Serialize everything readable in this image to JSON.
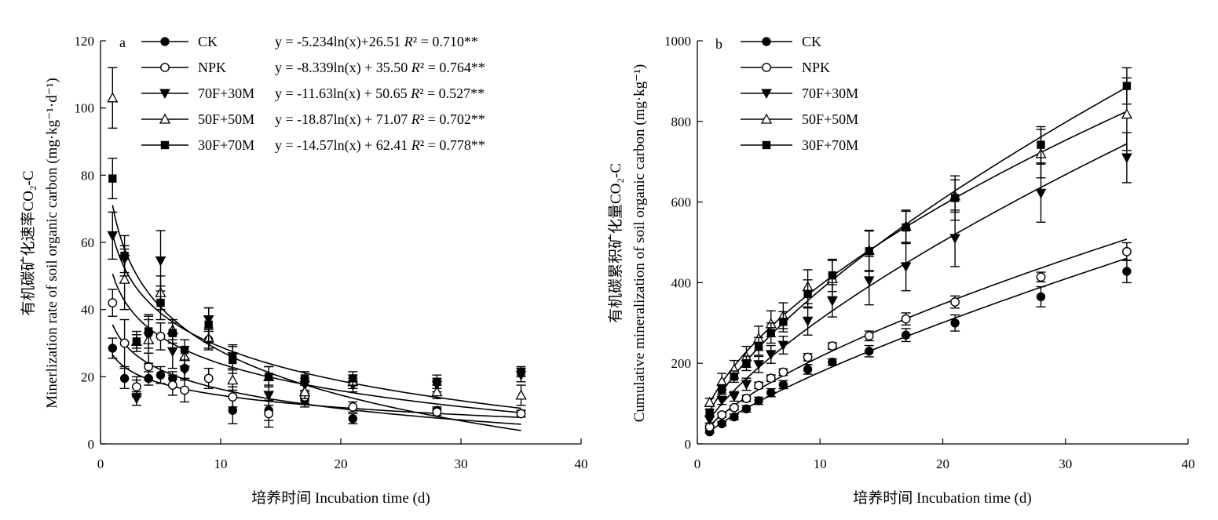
{
  "chart_data": [
    {
      "type": "scatter",
      "panel_label": "a",
      "xlabel": "培养时间 Incubation time (d)",
      "ylabel": "Minerlization rate of soil organic carbon (mg·kg⁻¹·d⁻¹)",
      "ylabel_cn": "有机碳矿化速率CO₂-C",
      "xlim": [
        0,
        40
      ],
      "ylim": [
        0,
        120
      ],
      "xticks": [
        0,
        10,
        20,
        30,
        40
      ],
      "yticks": [
        0,
        20,
        40,
        60,
        80,
        100,
        120
      ],
      "legend_position": "top",
      "fit": "logarithmic",
      "series": [
        {
          "name": "CK",
          "marker": "circle-filled",
          "fit_a": -5.234,
          "fit_b": 26.51,
          "equation": "y = -5.234ln(x)+26.51  R² = 0.710**",
          "points": [
            {
              "x": 1,
              "y": 28.5,
              "err": 3
            },
            {
              "x": 2,
              "y": 19.5,
              "err": 3
            },
            {
              "x": 3,
              "y": 17.0,
              "err": 2
            },
            {
              "x": 4,
              "y": 19.5,
              "err": 2
            },
            {
              "x": 5,
              "y": 20.5,
              "err": 2.5
            },
            {
              "x": 6,
              "y": 19.5,
              "err": 2
            },
            {
              "x": 7,
              "y": 22.5,
              "err": 3
            },
            {
              "x": 9,
              "y": 31.0,
              "err": 3
            },
            {
              "x": 11,
              "y": 10.0,
              "err": 4
            },
            {
              "x": 14,
              "y": 10.0,
              "err": 3
            },
            {
              "x": 17,
              "y": 13.0,
              "err": 2
            },
            {
              "x": 21,
              "y": 7.5,
              "err": 1.5
            },
            {
              "x": 28,
              "y": 10.0,
              "err": 1
            },
            {
              "x": 35,
              "y": 9.0,
              "err": 1
            }
          ]
        },
        {
          "name": "NPK",
          "marker": "circle-open",
          "fit_a": -8.339,
          "fit_b": 35.5,
          "equation": "y = -8.339ln(x) + 35.50  R² = 0.764**",
          "points": [
            {
              "x": 1,
              "y": 42.0,
              "err": 4
            },
            {
              "x": 2,
              "y": 30.0,
              "err": 7
            },
            {
              "x": 3,
              "y": 17.0,
              "err": 3
            },
            {
              "x": 4,
              "y": 23.0,
              "err": 4
            },
            {
              "x": 5,
              "y": 32.0,
              "err": 4
            },
            {
              "x": 6,
              "y": 17.5,
              "err": 3
            },
            {
              "x": 7,
              "y": 16.0,
              "err": 3.5
            },
            {
              "x": 9,
              "y": 19.5,
              "err": 3
            },
            {
              "x": 11,
              "y": 14.0,
              "err": 3
            },
            {
              "x": 14,
              "y": 9.0,
              "err": 4
            },
            {
              "x": 17,
              "y": 14.0,
              "err": 2
            },
            {
              "x": 21,
              "y": 11.0,
              "err": 1.5
            },
            {
              "x": 28,
              "y": 9.5,
              "err": 1
            },
            {
              "x": 35,
              "y": 9.0,
              "err": 1
            }
          ]
        },
        {
          "name": "70F+30M",
          "marker": "triangle-down-filled",
          "fit_a": -11.63,
          "fit_b": 50.65,
          "equation": "y = -11.63ln(x) + 50.65  R² = 0.527**",
          "points": [
            {
              "x": 1,
              "y": 62.0,
              "err": 7
            },
            {
              "x": 2,
              "y": 55.0,
              "err": 4
            },
            {
              "x": 3,
              "y": 13.5,
              "err": 2
            },
            {
              "x": 4,
              "y": 32.0,
              "err": 5
            },
            {
              "x": 5,
              "y": 54.5,
              "err": 9
            },
            {
              "x": 6,
              "y": 27.5,
              "err": 5
            },
            {
              "x": 7,
              "y": 22.0,
              "err": 3
            },
            {
              "x": 9,
              "y": 37.0,
              "err": 3.5
            },
            {
              "x": 11,
              "y": 26.0,
              "err": 3.5
            },
            {
              "x": 14,
              "y": 14.5,
              "err": 3
            },
            {
              "x": 17,
              "y": 17.5,
              "err": 2
            },
            {
              "x": 21,
              "y": 17.5,
              "err": 2
            },
            {
              "x": 28,
              "y": 17.5,
              "err": 2
            },
            {
              "x": 35,
              "y": 20.5,
              "err": 2
            }
          ]
        },
        {
          "name": "50F+50M",
          "marker": "triangle-up-open",
          "fit_a": -18.87,
          "fit_b": 71.07,
          "equation": "y = -18.87ln(x) + 71.07  R² = 0.702**",
          "points": [
            {
              "x": 1,
              "y": 103.0,
              "err": 9
            },
            {
              "x": 2,
              "y": 49.0,
              "err": 9
            },
            {
              "x": 3,
              "y": 30.5,
              "err": 3
            },
            {
              "x": 4,
              "y": 31.0,
              "err": 7
            },
            {
              "x": 5,
              "y": 45.0,
              "err": 5
            },
            {
              "x": 6,
              "y": 34.0,
              "err": 3
            },
            {
              "x": 7,
              "y": 26.0,
              "err": 3
            },
            {
              "x": 9,
              "y": 31.5,
              "err": 3
            },
            {
              "x": 11,
              "y": 19.0,
              "err": 3
            },
            {
              "x": 14,
              "y": 20.0,
              "err": 3
            },
            {
              "x": 17,
              "y": 15.5,
              "err": 2
            },
            {
              "x": 21,
              "y": 18.5,
              "err": 2
            },
            {
              "x": 28,
              "y": 15.5,
              "err": 2
            },
            {
              "x": 35,
              "y": 14.5,
              "err": 3
            }
          ]
        },
        {
          "name": "30F+70M",
          "marker": "square-filled",
          "fit_a": -14.57,
          "fit_b": 62.41,
          "equation": "y = -14.57ln(x) + 62.41  R² = 0.778**",
          "points": [
            {
              "x": 1,
              "y": 79.0,
              "err": 6
            },
            {
              "x": 2,
              "y": 56.0,
              "err": 6
            },
            {
              "x": 3,
              "y": 30.5,
              "err": 2
            },
            {
              "x": 4,
              "y": 33.5,
              "err": 5
            },
            {
              "x": 5,
              "y": 42.0,
              "err": 5
            },
            {
              "x": 6,
              "y": 33.0,
              "err": 3
            },
            {
              "x": 7,
              "y": 28.0,
              "err": 3
            },
            {
              "x": 9,
              "y": 35.5,
              "err": 5
            },
            {
              "x": 11,
              "y": 25.0,
              "err": 4
            },
            {
              "x": 14,
              "y": 20.0,
              "err": 3
            },
            {
              "x": 17,
              "y": 19.5,
              "err": 2
            },
            {
              "x": 21,
              "y": 19.5,
              "err": 2
            },
            {
              "x": 28,
              "y": 18.5,
              "err": 2
            },
            {
              "x": 35,
              "y": 21.5,
              "err": 1.5
            }
          ]
        }
      ]
    },
    {
      "type": "scatter",
      "panel_label": "b",
      "xlabel": "培养时间 Incubation time (d)",
      "ylabel": "Cumulative mineralization of soil organic carbon (mg·kg⁻¹)",
      "ylabel_cn": "有机碳累积矿化量CO₂-C",
      "xlim": [
        0,
        40
      ],
      "ylim": [
        0,
        1000
      ],
      "xticks": [
        0,
        10,
        20,
        30,
        40
      ],
      "yticks": [
        0,
        200,
        400,
        600,
        800,
        1000
      ],
      "legend_position": "top-left",
      "fit": "smooth curve",
      "series": [
        {
          "name": "CK",
          "marker": "circle-filled",
          "points": [
            {
              "x": 1,
              "y": 30,
              "err": 3
            },
            {
              "x": 2,
              "y": 50,
              "err": 5
            },
            {
              "x": 3,
              "y": 67,
              "err": 7
            },
            {
              "x": 4,
              "y": 87,
              "err": 8
            },
            {
              "x": 5,
              "y": 107,
              "err": 9
            },
            {
              "x": 6,
              "y": 127,
              "err": 10
            },
            {
              "x": 7,
              "y": 147,
              "err": 10
            },
            {
              "x": 9,
              "y": 185,
              "err": 12
            },
            {
              "x": 11,
              "y": 203,
              "err": 8
            },
            {
              "x": 14,
              "y": 230,
              "err": 14
            },
            {
              "x": 17,
              "y": 270,
              "err": 16
            },
            {
              "x": 21,
              "y": 300,
              "err": 20
            },
            {
              "x": 28,
              "y": 365,
              "err": 25
            },
            {
              "x": 35,
              "y": 428,
              "err": 28
            }
          ]
        },
        {
          "name": "NPK",
          "marker": "circle-open",
          "points": [
            {
              "x": 1,
              "y": 42,
              "err": 4
            },
            {
              "x": 2,
              "y": 72,
              "err": 6
            },
            {
              "x": 3,
              "y": 90,
              "err": 6
            },
            {
              "x": 4,
              "y": 113,
              "err": 8
            },
            {
              "x": 5,
              "y": 145,
              "err": 8
            },
            {
              "x": 6,
              "y": 163,
              "err": 8
            },
            {
              "x": 7,
              "y": 178,
              "err": 8
            },
            {
              "x": 9,
              "y": 215,
              "err": 9
            },
            {
              "x": 11,
              "y": 243,
              "err": 8
            },
            {
              "x": 14,
              "y": 268,
              "err": 12
            },
            {
              "x": 17,
              "y": 310,
              "err": 15
            },
            {
              "x": 21,
              "y": 352,
              "err": 15
            },
            {
              "x": 28,
              "y": 414,
              "err": 12
            },
            {
              "x": 35,
              "y": 477,
              "err": 22
            }
          ]
        },
        {
          "name": "70F+30M",
          "marker": "triangle-down-filled",
          "points": [
            {
              "x": 1,
              "y": 60,
              "err": 8
            },
            {
              "x": 2,
              "y": 108,
              "err": 10
            },
            {
              "x": 3,
              "y": 118,
              "err": 12
            },
            {
              "x": 4,
              "y": 148,
              "err": 15
            },
            {
              "x": 5,
              "y": 197,
              "err": 20
            },
            {
              "x": 6,
              "y": 222,
              "err": 22
            },
            {
              "x": 7,
              "y": 245,
              "err": 22
            },
            {
              "x": 9,
              "y": 305,
              "err": 35
            },
            {
              "x": 11,
              "y": 355,
              "err": 40
            },
            {
              "x": 14,
              "y": 405,
              "err": 60
            },
            {
              "x": 17,
              "y": 440,
              "err": 60
            },
            {
              "x": 21,
              "y": 510,
              "err": 70
            },
            {
              "x": 28,
              "y": 622,
              "err": 72
            },
            {
              "x": 35,
              "y": 710,
              "err": 62
            }
          ]
        },
        {
          "name": "50F+50M",
          "marker": "triangle-up-open",
          "points": [
            {
              "x": 1,
              "y": 103,
              "err": 10
            },
            {
              "x": 2,
              "y": 155,
              "err": 20
            },
            {
              "x": 3,
              "y": 185,
              "err": 22
            },
            {
              "x": 4,
              "y": 216,
              "err": 26
            },
            {
              "x": 5,
              "y": 262,
              "err": 30
            },
            {
              "x": 6,
              "y": 298,
              "err": 32
            },
            {
              "x": 7,
              "y": 318,
              "err": 32
            },
            {
              "x": 9,
              "y": 390,
              "err": 42
            },
            {
              "x": 11,
              "y": 410,
              "err": 45
            },
            {
              "x": 14,
              "y": 480,
              "err": 50
            },
            {
              "x": 17,
              "y": 540,
              "err": 40
            },
            {
              "x": 21,
              "y": 615,
              "err": 40
            },
            {
              "x": 28,
              "y": 720,
              "err": 60
            },
            {
              "x": 35,
              "y": 818,
              "err": 90
            }
          ]
        },
        {
          "name": "30F+70M",
          "marker": "square-filled",
          "points": [
            {
              "x": 1,
              "y": 78,
              "err": 8
            },
            {
              "x": 2,
              "y": 135,
              "err": 12
            },
            {
              "x": 3,
              "y": 167,
              "err": 14
            },
            {
              "x": 4,
              "y": 200,
              "err": 18
            },
            {
              "x": 5,
              "y": 242,
              "err": 22
            },
            {
              "x": 6,
              "y": 275,
              "err": 25
            },
            {
              "x": 7,
              "y": 303,
              "err": 25
            },
            {
              "x": 9,
              "y": 372,
              "err": 35
            },
            {
              "x": 11,
              "y": 418,
              "err": 40
            },
            {
              "x": 14,
              "y": 478,
              "err": 50
            },
            {
              "x": 17,
              "y": 537,
              "err": 40
            },
            {
              "x": 21,
              "y": 610,
              "err": 55
            },
            {
              "x": 28,
              "y": 742,
              "err": 45
            },
            {
              "x": 35,
              "y": 888,
              "err": 45
            }
          ]
        }
      ]
    }
  ]
}
